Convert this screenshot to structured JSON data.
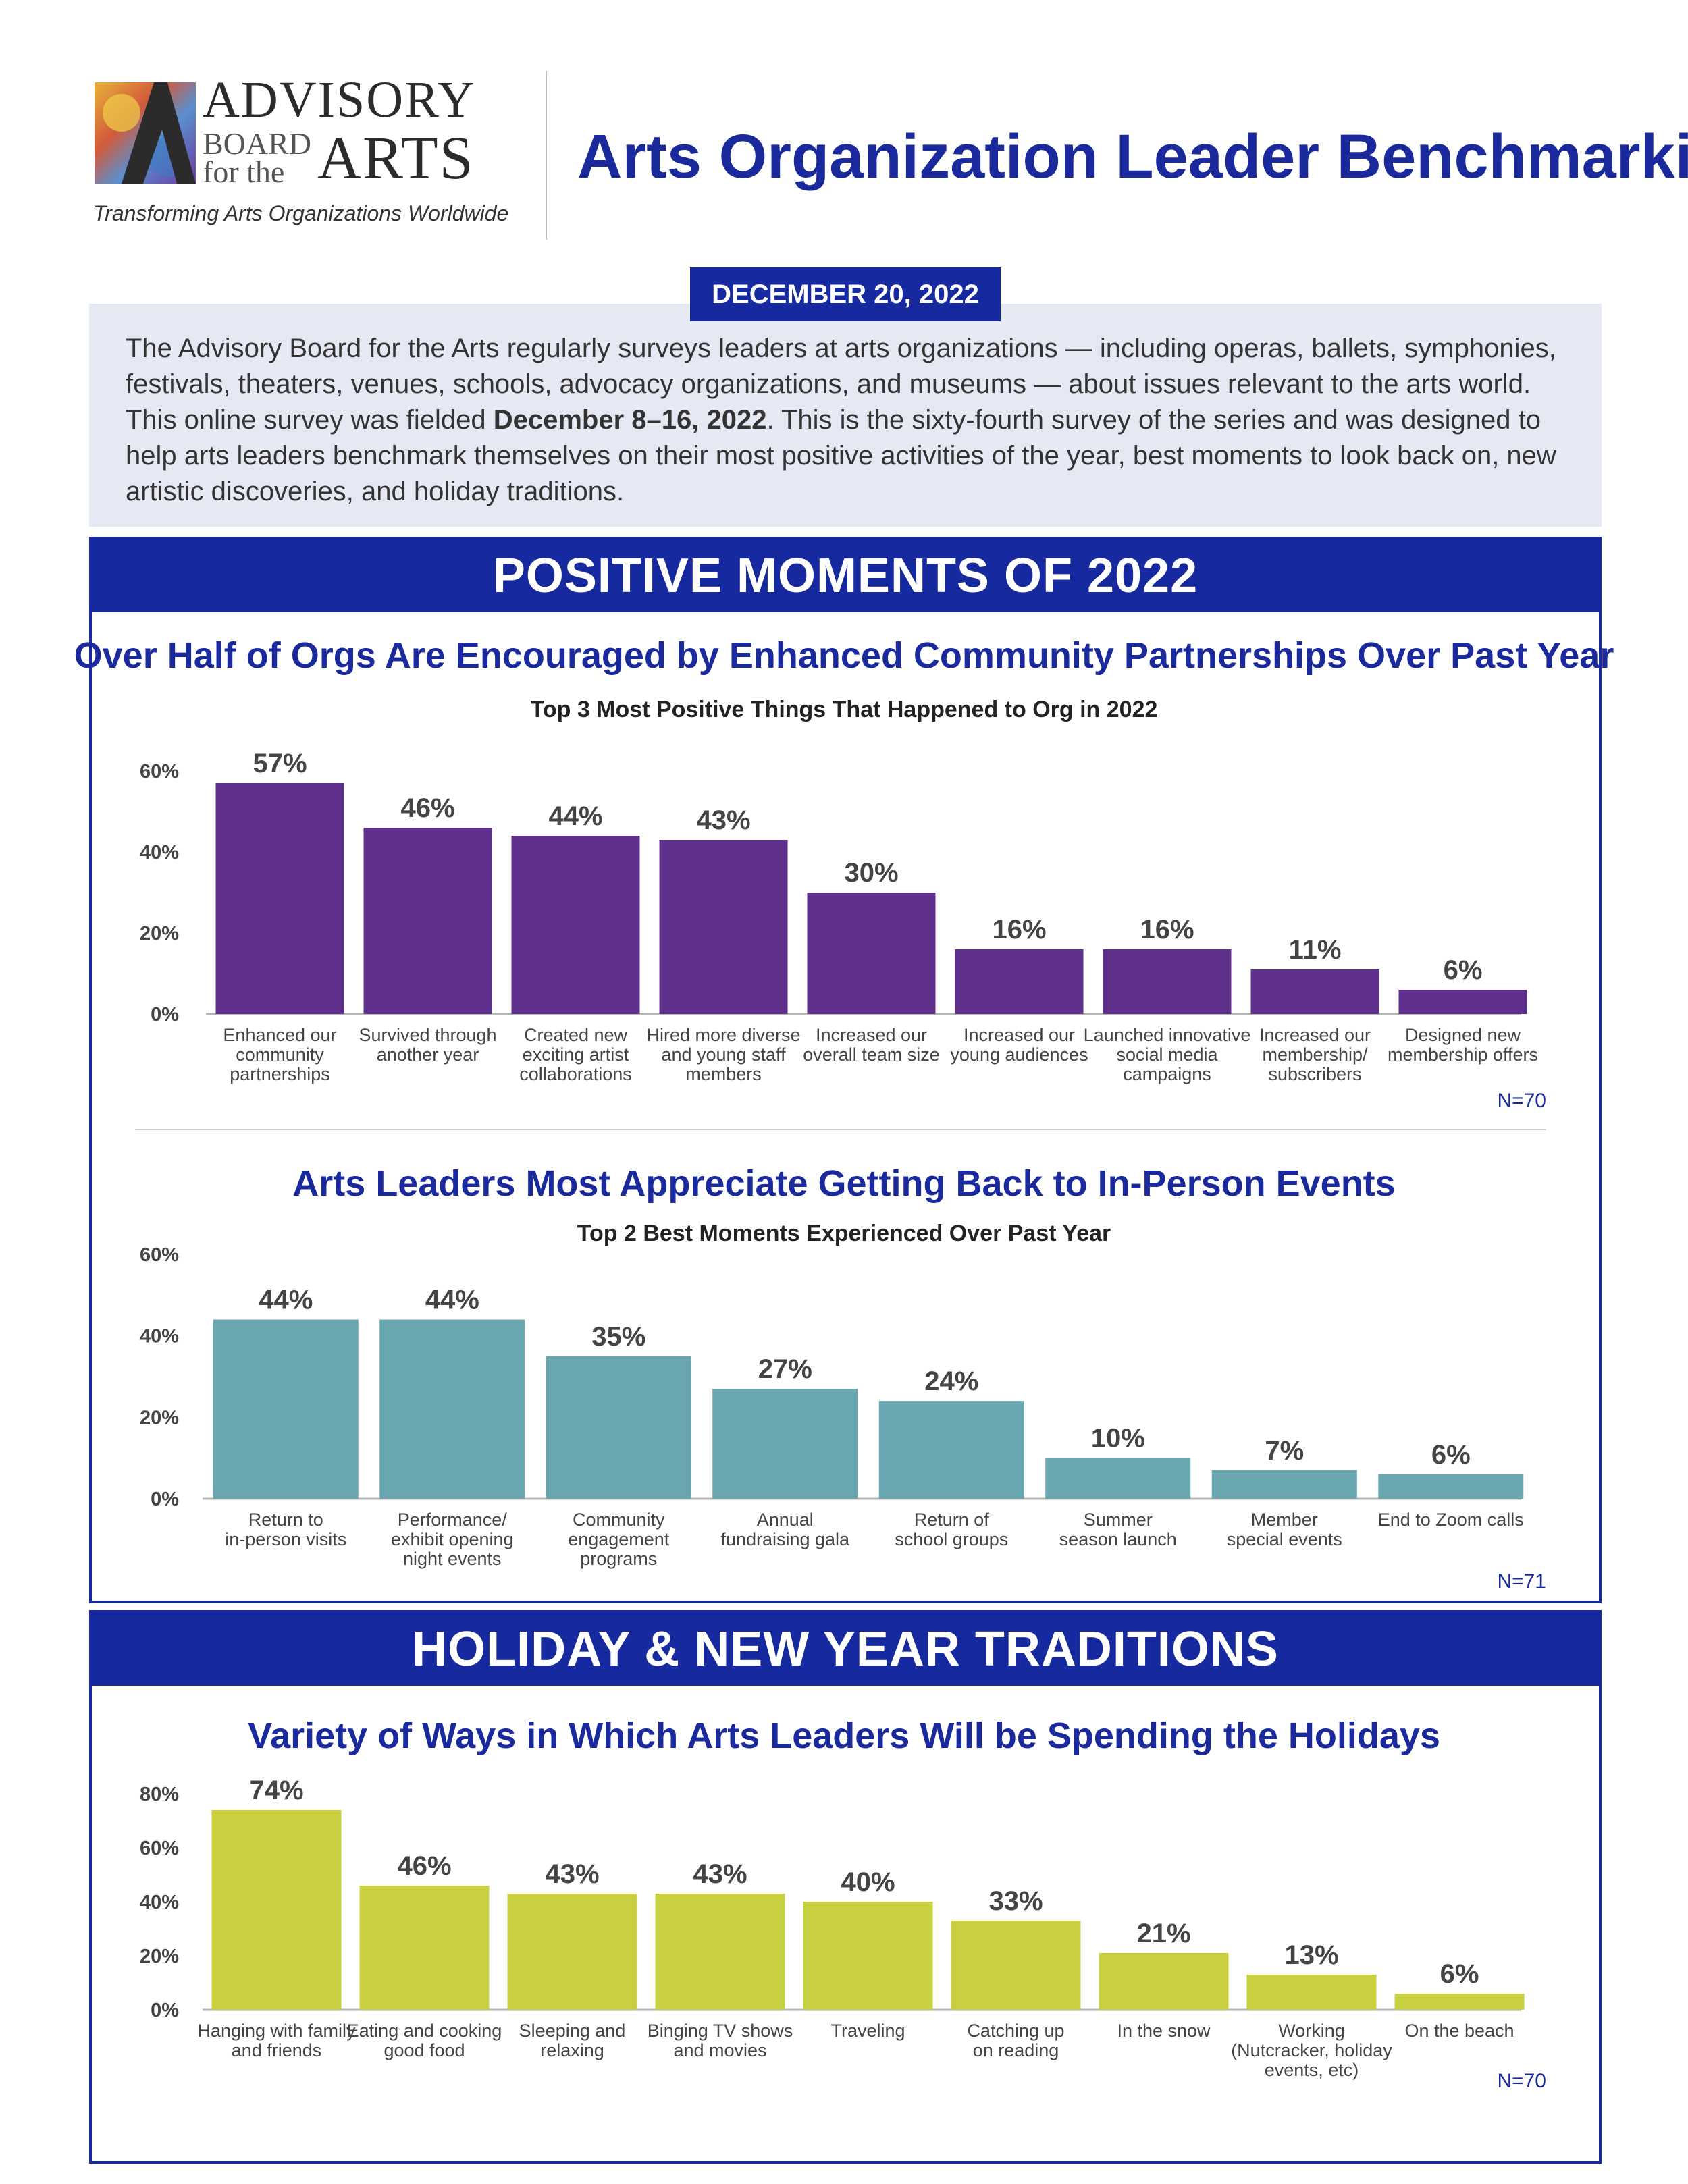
{
  "header": {
    "org_name_line1": "ADVISORY",
    "org_name_line2": "BOARD",
    "org_name_line3": "for the",
    "org_name_line4": "ARTS",
    "tagline": "Transforming Arts Organizations Worldwide",
    "title": "Arts Organization Leader Benchmarking",
    "date": "DECEMBER 20, 2022"
  },
  "intro": {
    "text_before": "The Advisory Board for the Arts regularly surveys leaders at arts organizations — including  operas, ballets, symphonies, festivals, theaters, venues, schools, advocacy organizations, and museums — about issues relevant to the arts world. This online survey was fielded ",
    "text_bold": "December 8–16, 2022",
    "text_after": ". This is the sixty-fourth survey of the series and was designed to help arts leaders benchmark themselves on their most positive activities of the year, best moments to look back on, new artistic discoveries, and holiday traditions."
  },
  "sections": {
    "positive": "POSITIVE MOMENTS OF 2022",
    "holiday": "HOLIDAY & NEW YEAR TRADITIONS"
  },
  "colors": {
    "brand_blue": "#16299e",
    "purple": "#5e308c",
    "teal": "#6aa6b0",
    "lime": "#c8d03f"
  },
  "chart_data": [
    {
      "type": "bar",
      "title": "Over Half of Orgs Are Encouraged by Enhanced Community Partnerships Over Past Year",
      "subtitle": "Top 3 Most Positive Things That Happened to Org in 2022",
      "categories": [
        [
          "Enhanced our",
          "community",
          "partnerships"
        ],
        [
          "Survived through",
          "another year"
        ],
        [
          "Created new",
          "exciting artist",
          "collaborations"
        ],
        [
          "Hired more diverse",
          "and young staff",
          "members"
        ],
        [
          "Increased our",
          "overall team size"
        ],
        [
          "Increased our",
          "young audiences"
        ],
        [
          "Launched innovative",
          "social media",
          "campaigns"
        ],
        [
          "Increased our",
          "membership/",
          "subscribers"
        ],
        [
          "Designed new",
          "membership offers"
        ]
      ],
      "values": [
        57,
        46,
        44,
        43,
        30,
        16,
        16,
        11,
        6
      ],
      "value_labels": [
        "57%",
        "46%",
        "44%",
        "43%",
        "30%",
        "16%",
        "16%",
        "11%",
        "6%"
      ],
      "ylim": [
        0,
        60
      ],
      "yticks": [
        "0%",
        "20%",
        "40%",
        "60%"
      ],
      "n": "N=70",
      "grid": false,
      "color": "#5e308c"
    },
    {
      "type": "bar",
      "title": "Arts Leaders Most Appreciate Getting Back to In-Person Events",
      "subtitle": "Top 2 Best Moments Experienced Over Past Year",
      "categories": [
        [
          "Return to",
          "in-person visits"
        ],
        [
          "Performance/",
          "exhibit opening",
          "night events"
        ],
        [
          "Community",
          "engagement",
          "programs"
        ],
        [
          "Annual",
          "fundraising gala"
        ],
        [
          "Return of",
          "school groups"
        ],
        [
          "Summer",
          "season launch"
        ],
        [
          "Member",
          "special events"
        ],
        [
          "End to Zoom calls"
        ]
      ],
      "values": [
        44,
        44,
        35,
        27,
        24,
        10,
        7,
        6
      ],
      "value_labels": [
        "44%",
        "44%",
        "35%",
        "27%",
        "24%",
        "10%",
        "7%",
        "6%"
      ],
      "ylim": [
        0,
        60
      ],
      "yticks": [
        "0%",
        "20%",
        "40%",
        "60%"
      ],
      "n": "N=71",
      "grid": false,
      "color": "#6aa6b0"
    },
    {
      "type": "bar",
      "title": "Variety of Ways in Which Arts Leaders Will be Spending the Holidays",
      "subtitle": "",
      "categories": [
        [
          "Hanging with family",
          "and friends"
        ],
        [
          "Eating and cooking",
          "good food"
        ],
        [
          "Sleeping and",
          "relaxing"
        ],
        [
          "Binging TV shows",
          "and movies"
        ],
        [
          "Traveling"
        ],
        [
          "Catching up",
          "on reading"
        ],
        [
          "In the snow"
        ],
        [
          "Working",
          "(Nutcracker, holiday",
          "events, etc)"
        ],
        [
          "On the beach"
        ]
      ],
      "values": [
        74,
        46,
        43,
        43,
        40,
        33,
        21,
        13,
        6
      ],
      "value_labels": [
        "74%",
        "46%",
        "43%",
        "43%",
        "40%",
        "33%",
        "21%",
        "13%",
        "6%"
      ],
      "ylim": [
        0,
        80
      ],
      "yticks": [
        "0%",
        "20%",
        "40%",
        "60%",
        "80%"
      ],
      "n": "N=70",
      "grid": false,
      "color": "#c8d03f"
    }
  ]
}
